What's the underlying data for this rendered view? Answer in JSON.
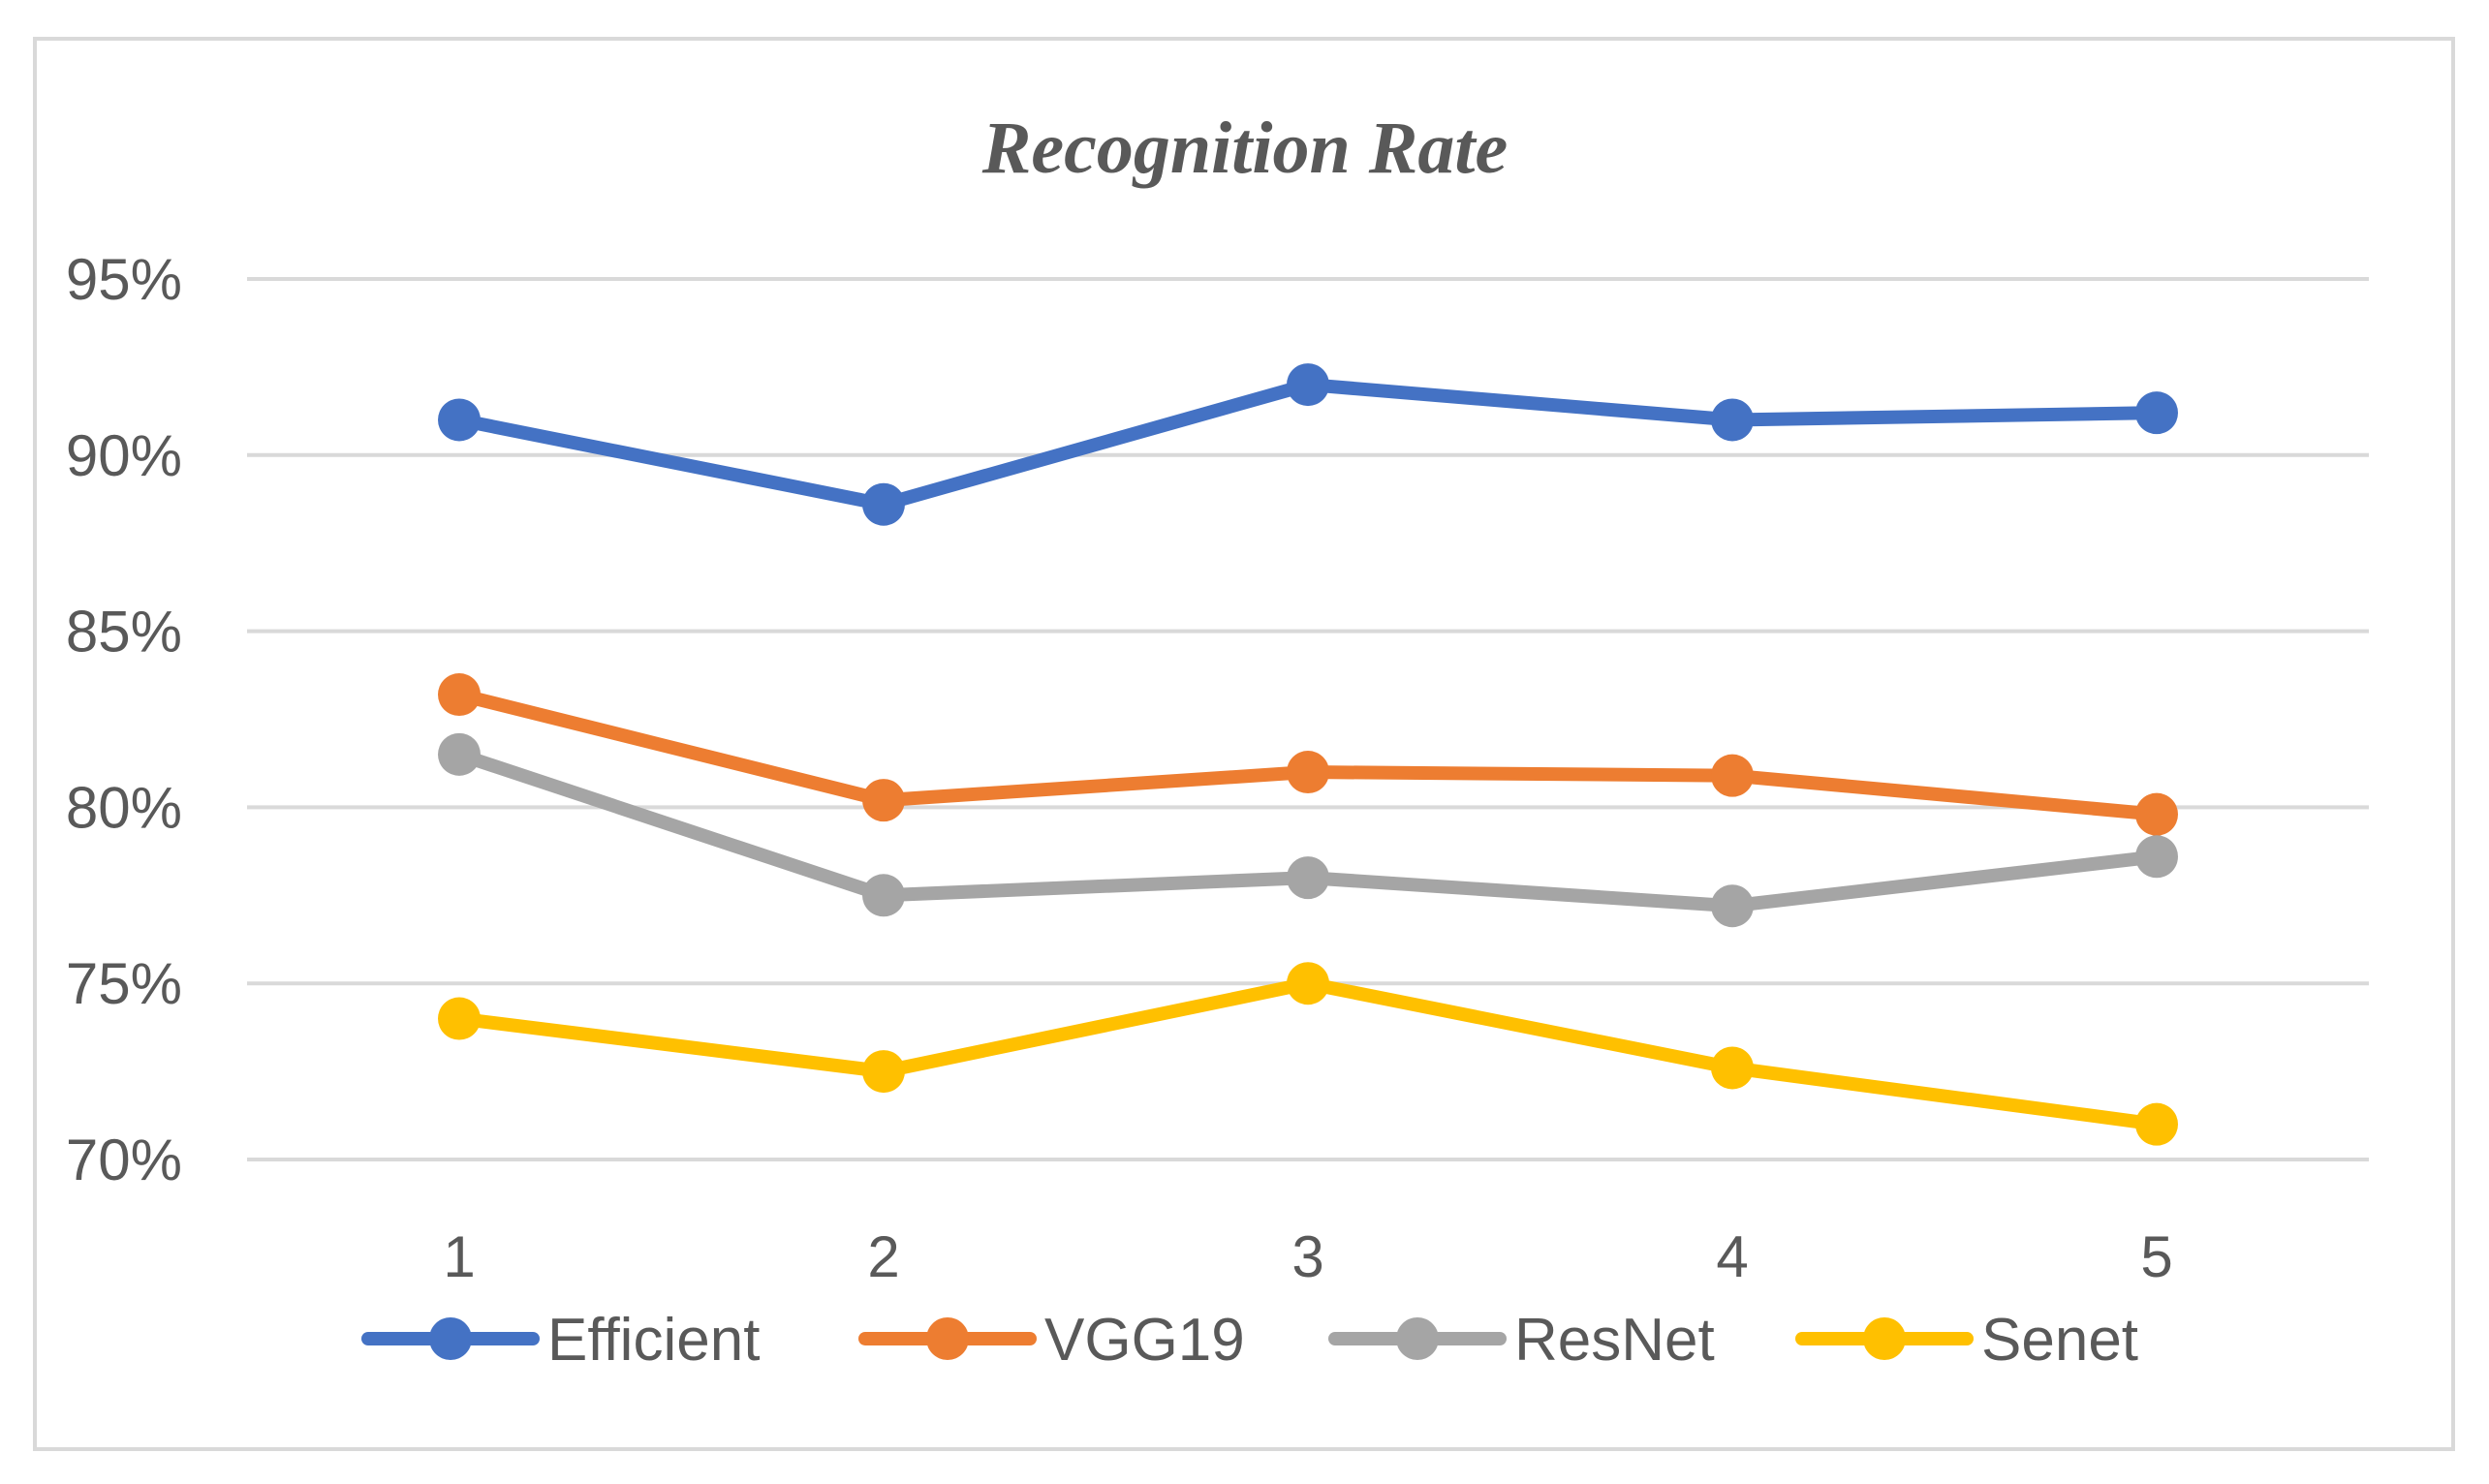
{
  "chart_data": {
    "type": "line",
    "title": "Recognition Rate",
    "xlabel": "",
    "ylabel": "",
    "categories": [
      "1",
      "2",
      "3",
      "4",
      "5"
    ],
    "ylim": [
      70,
      95
    ],
    "yticks": [
      70,
      75,
      80,
      85,
      90,
      95
    ],
    "ytick_labels": [
      "70%",
      "75%",
      "80%",
      "85%",
      "90%",
      "95%"
    ],
    "grid": true,
    "legend_position": "bottom",
    "series": [
      {
        "name": "Efficient",
        "color": "#4472c4",
        "values": [
          91.0,
          88.6,
          92.0,
          91.0,
          91.2
        ]
      },
      {
        "name": "VGG19",
        "color": "#ed7d31",
        "values": [
          83.2,
          80.2,
          81.0,
          80.9,
          79.8
        ]
      },
      {
        "name": "ResNet",
        "color": "#a5a5a5",
        "values": [
          81.5,
          77.5,
          78.0,
          77.2,
          78.6
        ]
      },
      {
        "name": "Senet",
        "color": "#ffc000",
        "values": [
          74.0,
          72.5,
          75.0,
          72.6,
          71.0
        ]
      }
    ]
  }
}
